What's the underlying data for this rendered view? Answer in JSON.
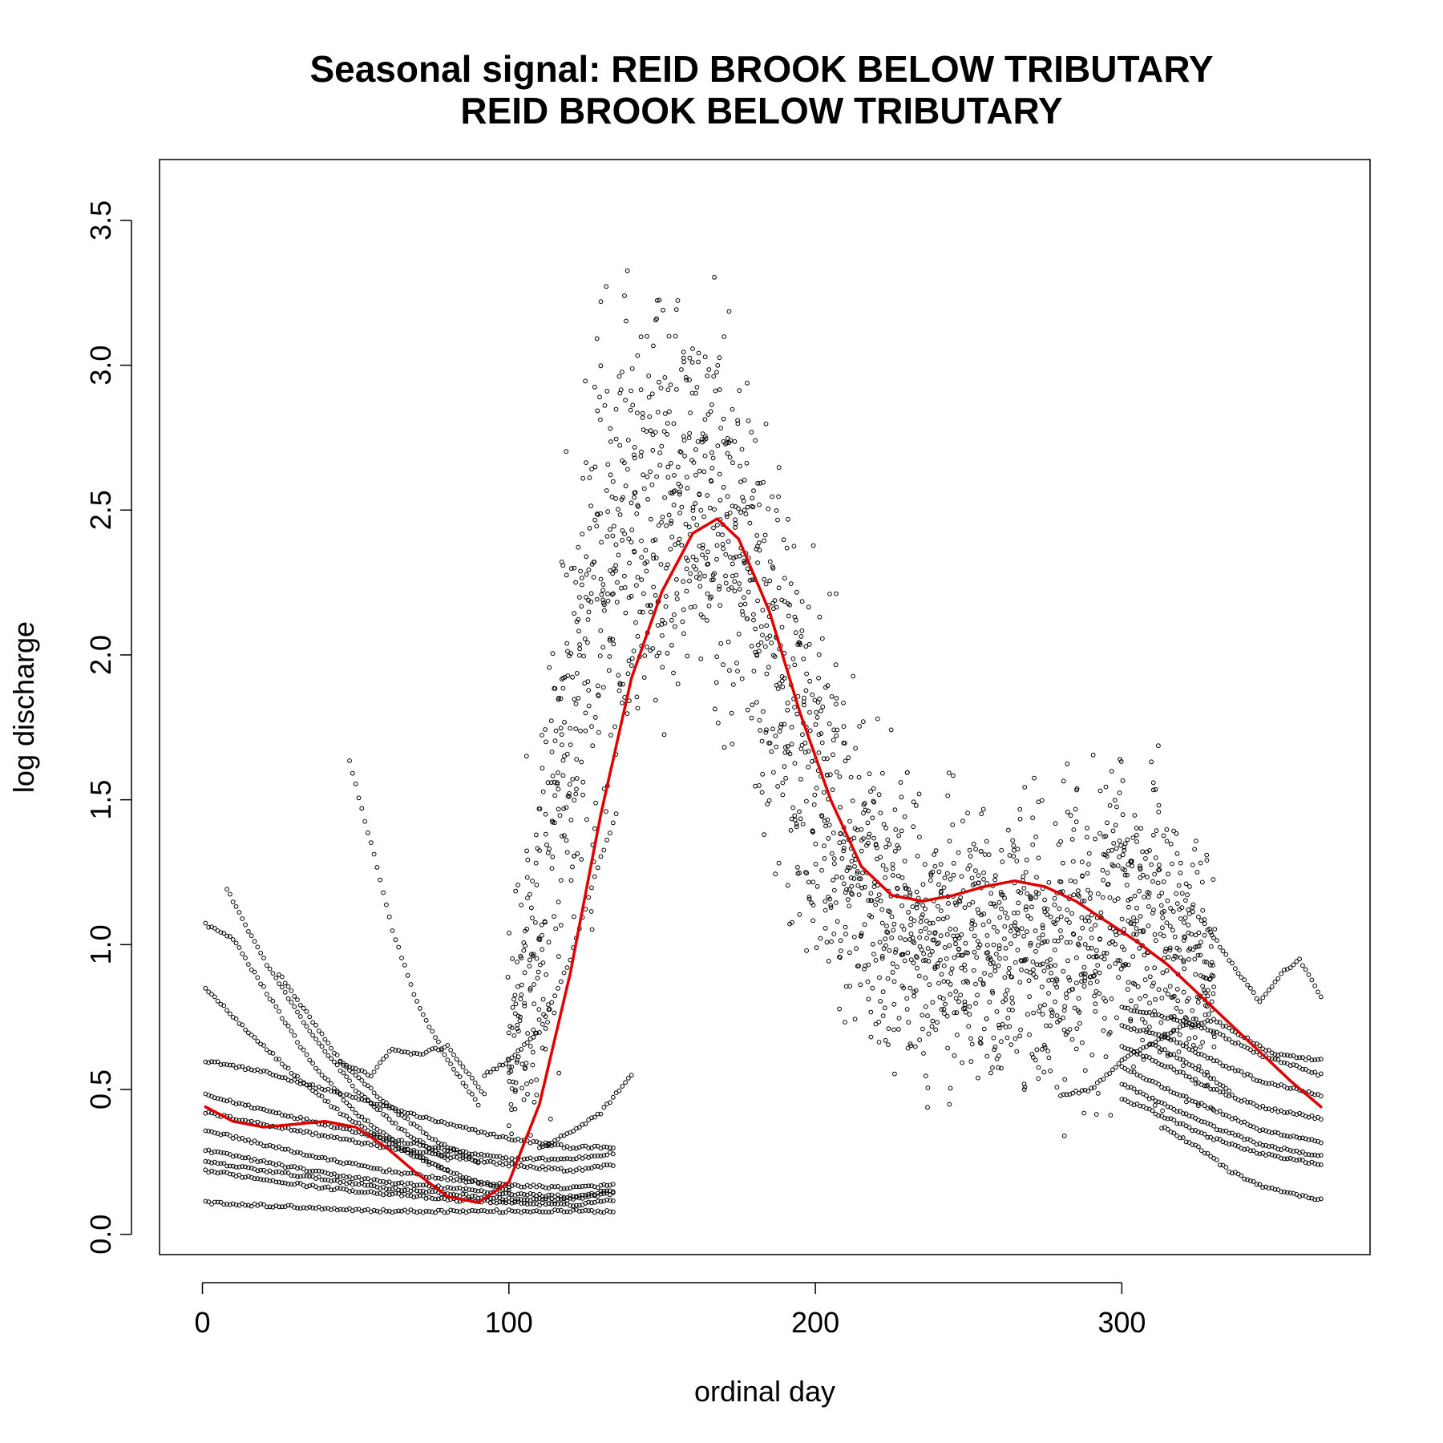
{
  "chart_data": {
    "type": "scatter",
    "title": "Seasonal signal: REID BROOK BELOW TRIBUTARY",
    "subtitle": "REID BROOK BELOW TRIBUTARY",
    "xlabel": "ordinal day",
    "ylabel": "log discharge",
    "xlim": [
      -14,
      381
    ],
    "ylim": [
      -0.07,
      3.71
    ],
    "x_ticks": [
      0,
      100,
      200,
      300
    ],
    "y_ticks": [
      0.0,
      0.5,
      1.0,
      1.5,
      2.0,
      2.5,
      3.0,
      3.5
    ],
    "x_tick_labels": [
      "0",
      "100",
      "200",
      "300"
    ],
    "y_tick_labels": [
      "0.0",
      "0.5",
      "1.0",
      "1.5",
      "2.0",
      "2.5",
      "3.0",
      "3.5"
    ],
    "grid": false,
    "legend": "none",
    "colors": {
      "points": "#000000",
      "smooth": "#e00000"
    },
    "smooth_curve": {
      "x": [
        1,
        10,
        20,
        30,
        40,
        50,
        60,
        70,
        80,
        90,
        100,
        110,
        120,
        130,
        140,
        150,
        160,
        168,
        175,
        185,
        195,
        205,
        215,
        225,
        235,
        245,
        255,
        265,
        275,
        285,
        295,
        305,
        315,
        325,
        335,
        345,
        355,
        365
      ],
      "y": [
        0.44,
        0.39,
        0.37,
        0.38,
        0.39,
        0.37,
        0.3,
        0.21,
        0.13,
        0.11,
        0.18,
        0.45,
        0.9,
        1.45,
        1.92,
        2.22,
        2.42,
        2.47,
        2.4,
        2.15,
        1.8,
        1.5,
        1.27,
        1.17,
        1.15,
        1.17,
        1.2,
        1.22,
        1.2,
        1.15,
        1.08,
        1.01,
        0.93,
        0.83,
        0.73,
        0.63,
        0.53,
        0.44
      ]
    },
    "year_traces": [
      {
        "days": [
          1,
          20,
          40,
          60,
          80,
          100,
          120,
          134
        ],
        "y": [
          0.6,
          0.56,
          0.5,
          0.44,
          0.38,
          0.33,
          0.3,
          0.3
        ]
      },
      {
        "days": [
          1,
          20,
          40,
          60,
          80,
          100,
          120,
          134
        ],
        "y": [
          0.48,
          0.43,
          0.38,
          0.33,
          0.29,
          0.26,
          0.26,
          0.28
        ]
      },
      {
        "days": [
          1,
          20,
          40,
          60,
          80,
          100,
          120,
          134
        ],
        "y": [
          0.42,
          0.38,
          0.34,
          0.3,
          0.27,
          0.24,
          0.22,
          0.24
        ]
      },
      {
        "days": [
          1,
          20,
          40,
          60,
          80,
          100,
          120,
          134
        ],
        "y": [
          0.36,
          0.31,
          0.26,
          0.22,
          0.19,
          0.17,
          0.16,
          0.17
        ]
      },
      {
        "days": [
          1,
          20,
          40,
          60,
          80,
          100,
          120,
          134
        ],
        "y": [
          0.29,
          0.25,
          0.21,
          0.18,
          0.16,
          0.14,
          0.13,
          0.15
        ]
      },
      {
        "days": [
          1,
          20,
          40,
          60,
          80,
          100,
          120,
          134
        ],
        "y": [
          0.25,
          0.22,
          0.19,
          0.16,
          0.14,
          0.12,
          0.12,
          0.14
        ]
      },
      {
        "days": [
          1,
          20,
          40,
          60,
          80,
          100,
          120,
          134
        ],
        "y": [
          0.22,
          0.19,
          0.16,
          0.14,
          0.12,
          0.11,
          0.1,
          0.12
        ]
      },
      {
        "days": [
          1,
          20,
          40,
          60,
          80,
          100,
          120,
          134
        ],
        "y": [
          0.11,
          0.1,
          0.09,
          0.08,
          0.08,
          0.08,
          0.08,
          0.08
        ]
      },
      {
        "days": [
          1,
          15,
          30,
          45,
          60,
          75,
          90,
          100
        ],
        "y": [
          0.85,
          0.7,
          0.55,
          0.42,
          0.32,
          0.24,
          0.18,
          0.15
        ]
      },
      {
        "days": [
          1,
          10,
          20,
          35,
          50,
          65,
          80
        ],
        "y": [
          1.07,
          1.02,
          0.85,
          0.6,
          0.42,
          0.3,
          0.22
        ]
      },
      {
        "days": [
          8,
          20,
          35,
          50,
          65,
          80
        ],
        "y": [
          1.19,
          0.95,
          0.7,
          0.5,
          0.36,
          0.26
        ]
      },
      {
        "days": [
          25,
          35,
          45,
          60,
          75,
          90
        ],
        "y": [
          0.9,
          0.75,
          0.6,
          0.45,
          0.33,
          0.25
        ]
      },
      {
        "days": [
          48,
          55,
          62,
          70,
          80,
          90
        ],
        "y": [
          1.63,
          1.35,
          1.05,
          0.8,
          0.6,
          0.45
        ]
      },
      {
        "days": [
          45,
          55,
          62,
          70,
          80,
          92
        ],
        "y": [
          0.59,
          0.55,
          0.64,
          0.62,
          0.65,
          0.48
        ]
      },
      {
        "days": [
          92,
          100,
          110,
          120,
          130,
          135
        ],
        "y": [
          0.55,
          0.6,
          0.7,
          0.95,
          1.3,
          1.45
        ]
      },
      {
        "days": [
          110,
          120,
          130,
          140
        ],
        "y": [
          0.3,
          0.35,
          0.42,
          0.55
        ]
      },
      {
        "days": [
          310,
          320,
          330,
          340,
          350,
          365
        ],
        "y": [
          0.66,
          0.72,
          0.74,
          0.68,
          0.62,
          0.6
        ]
      },
      {
        "days": [
          300,
          315,
          330,
          345,
          365
        ],
        "y": [
          0.78,
          0.75,
          0.7,
          0.62,
          0.55
        ]
      },
      {
        "days": [
          300,
          315,
          330,
          345,
          365
        ],
        "y": [
          0.72,
          0.68,
          0.6,
          0.53,
          0.48
        ]
      },
      {
        "days": [
          300,
          315,
          330,
          345,
          365
        ],
        "y": [
          0.65,
          0.58,
          0.5,
          0.44,
          0.4
        ]
      },
      {
        "days": [
          300,
          315,
          330,
          345,
          365
        ],
        "y": [
          0.58,
          0.5,
          0.43,
          0.36,
          0.32
        ]
      },
      {
        "days": [
          300,
          315,
          330,
          345,
          365
        ],
        "y": [
          0.52,
          0.44,
          0.37,
          0.31,
          0.27
        ]
      },
      {
        "days": [
          300,
          315,
          330,
          345,
          365
        ],
        "y": [
          0.47,
          0.4,
          0.33,
          0.28,
          0.24
        ]
      },
      {
        "days": [
          313,
          325,
          335,
          345,
          355,
          365
        ],
        "y": [
          0.37,
          0.3,
          0.22,
          0.17,
          0.14,
          0.12
        ]
      },
      {
        "days": [
          280,
          290,
          300,
          310,
          320,
          335
        ],
        "y": [
          0.48,
          0.5,
          0.6,
          0.66,
          0.6,
          0.5
        ]
      },
      {
        "days": [
          325,
          335,
          345,
          352,
          358,
          365
        ],
        "y": [
          1.1,
          0.95,
          0.8,
          0.9,
          0.95,
          0.82
        ]
      }
    ],
    "cloud_envelope": {
      "days": [
        100,
        110,
        120,
        125,
        130,
        140,
        150,
        160,
        170,
        180,
        190,
        200,
        210,
        220,
        230,
        240,
        250,
        260,
        270,
        280,
        290,
        300,
        310,
        320,
        330
      ],
      "center": [
        0.55,
        1.1,
        1.8,
        2.1,
        2.25,
        2.4,
        2.5,
        2.55,
        2.5,
        2.2,
        1.9,
        1.6,
        1.35,
        1.2,
        1.05,
        1.0,
        0.98,
        0.97,
        0.98,
        1.0,
        1.05,
        1.1,
        1.05,
        0.95,
        0.85
      ],
      "spread": [
        0.25,
        0.45,
        0.55,
        0.55,
        0.55,
        0.45,
        0.4,
        0.4,
        0.4,
        0.4,
        0.4,
        0.4,
        0.35,
        0.32,
        0.3,
        0.28,
        0.28,
        0.28,
        0.3,
        0.32,
        0.35,
        0.35,
        0.32,
        0.28,
        0.25
      ]
    }
  }
}
